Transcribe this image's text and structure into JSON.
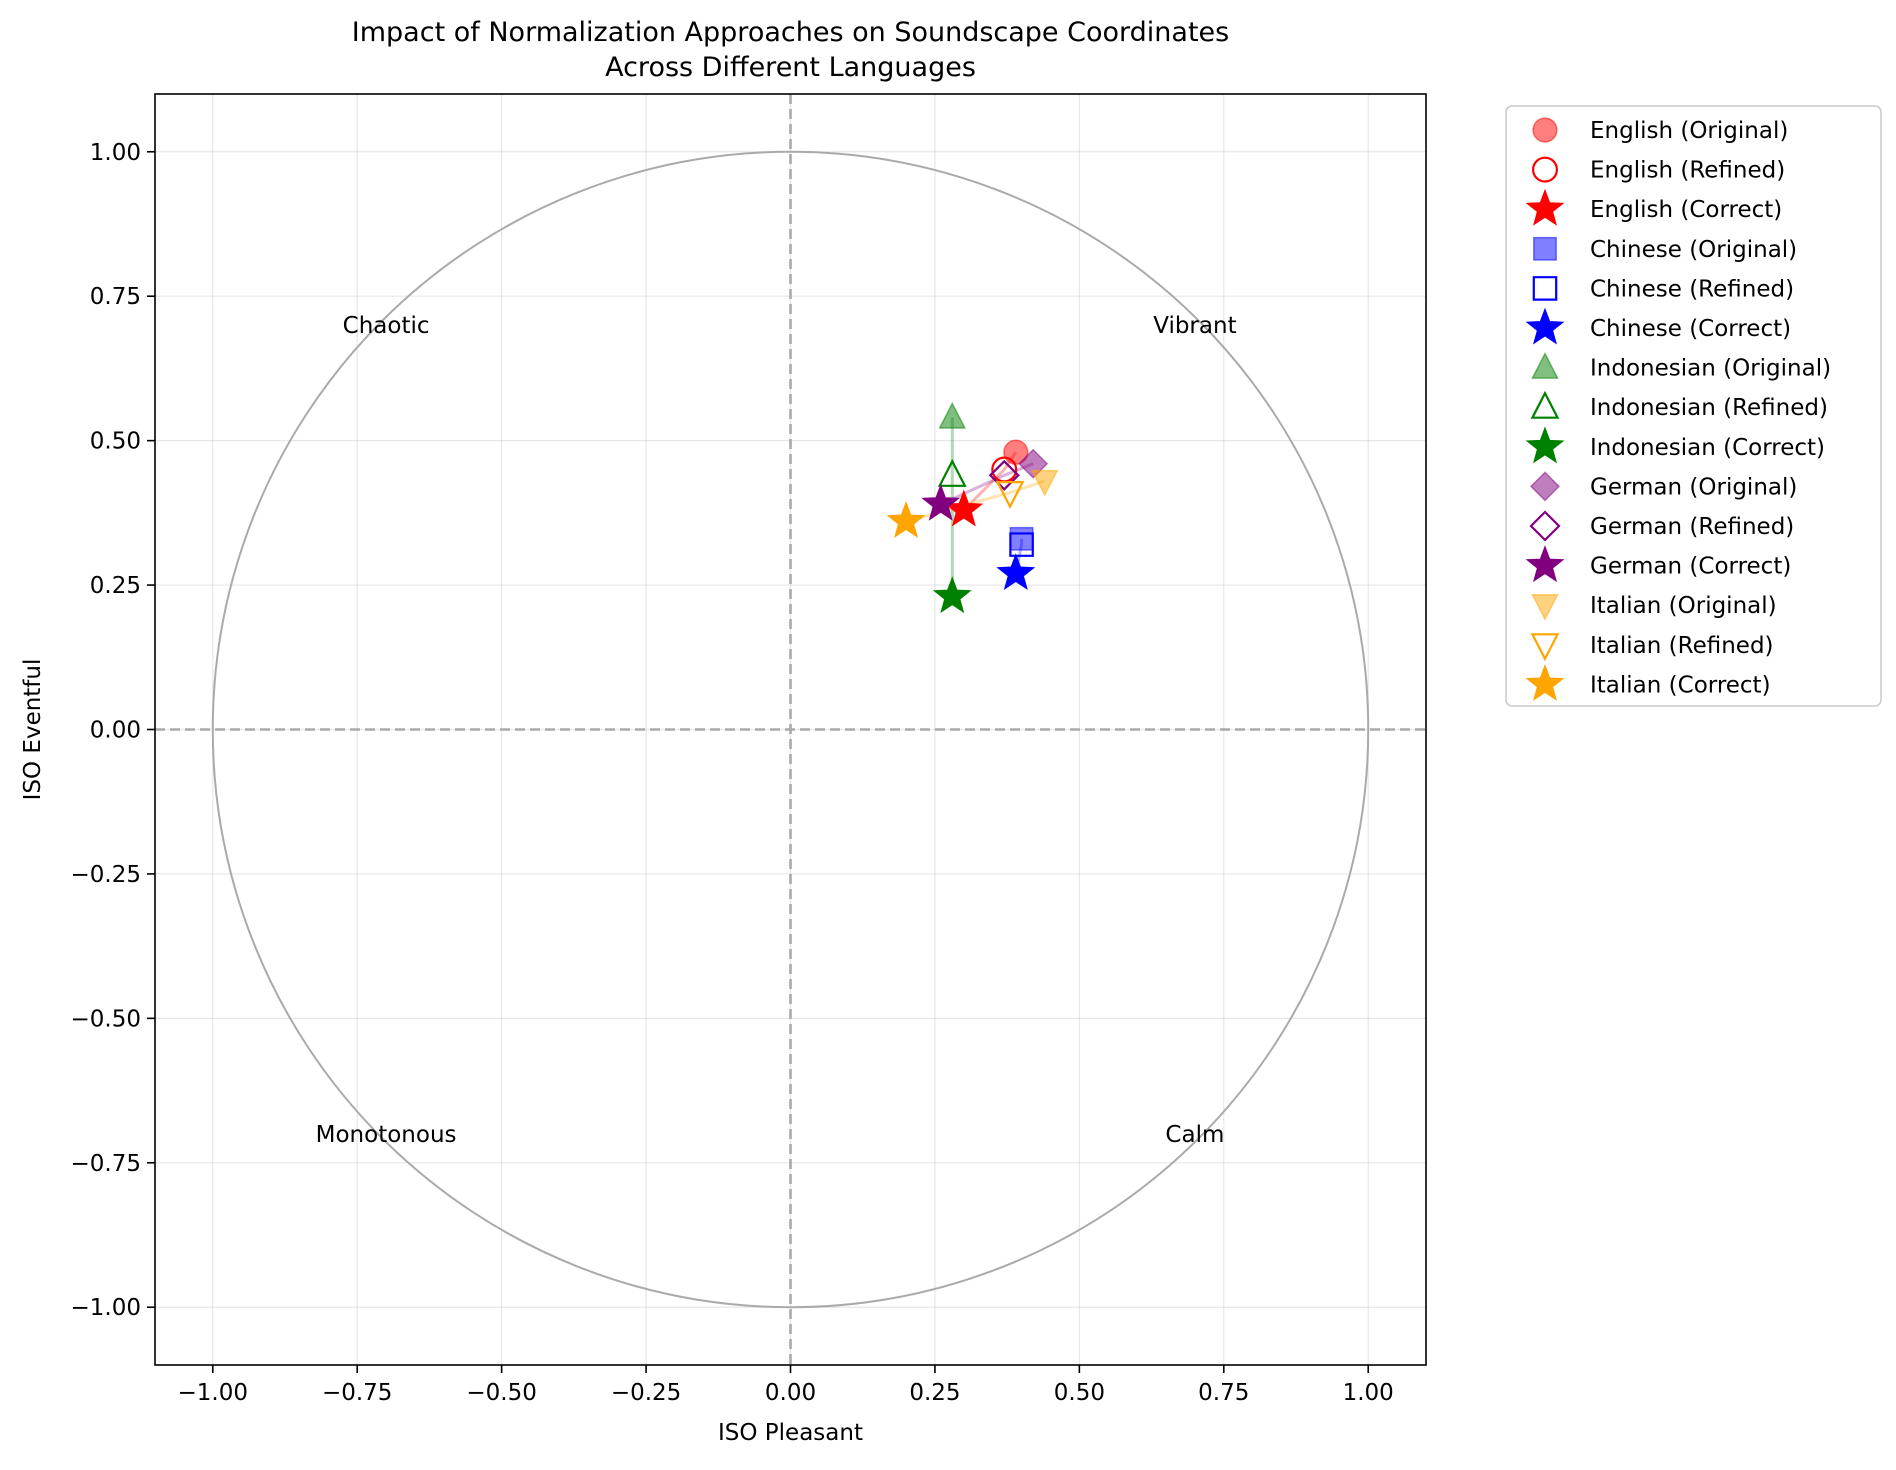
{
  "chart_data": {
    "type": "scatter",
    "title_lines": [
      "Impact of Normalization Approaches on Soundscape Coordinates",
      "Across Different Languages"
    ],
    "xlabel": "ISO Pleasant",
    "ylabel": "ISO Eventful",
    "xlim": [
      -1.1,
      1.1
    ],
    "ylim": [
      -1.1,
      1.1
    ],
    "xticks": [
      -1.0,
      -0.75,
      -0.5,
      -0.25,
      0.0,
      0.25,
      0.5,
      0.75,
      1.0
    ],
    "yticks": [
      -1.0,
      -0.75,
      -0.5,
      -0.25,
      0.0,
      0.25,
      0.5,
      0.75,
      1.0
    ],
    "xtick_labels": [
      "−1.00",
      "−0.75",
      "−0.50",
      "−0.25",
      "0.00",
      "0.25",
      "0.50",
      "0.75",
      "1.00"
    ],
    "ytick_labels": [
      "−1.00",
      "−0.75",
      "−0.50",
      "−0.25",
      "0.00",
      "0.25",
      "0.50",
      "0.75",
      "1.00"
    ],
    "grid": true,
    "unit_circle": true,
    "reference_lines": {
      "x": 0,
      "y": 0,
      "style": "dashed",
      "color": "#aaaaaa"
    },
    "legend_placement": "outside-top-right",
    "quadrant_labels": [
      {
        "text": "Chaotic",
        "x": -0.7,
        "y": 0.7
      },
      {
        "text": "Vibrant",
        "x": 0.7,
        "y": 0.7
      },
      {
        "text": "Monotonous",
        "x": -0.7,
        "y": -0.7
      },
      {
        "text": "Calm",
        "x": 0.7,
        "y": -0.7
      }
    ],
    "languages": [
      {
        "name": "English",
        "color": "#ff0000",
        "marker": "circle",
        "original": [
          0.39,
          0.48
        ],
        "refined": [
          0.37,
          0.45
        ],
        "correct": [
          0.3,
          0.38
        ]
      },
      {
        "name": "Chinese",
        "color": "#0000ff",
        "marker": "square",
        "original": [
          0.4,
          0.33
        ],
        "refined": [
          0.4,
          0.32
        ],
        "correct": [
          0.39,
          0.27
        ]
      },
      {
        "name": "Indonesian",
        "color": "#008000",
        "marker": "triangle-up",
        "original": [
          0.28,
          0.54
        ],
        "refined": [
          0.28,
          0.44
        ],
        "correct": [
          0.28,
          0.23
        ]
      },
      {
        "name": "German",
        "color": "#800080",
        "marker": "diamond",
        "original": [
          0.42,
          0.46
        ],
        "refined": [
          0.37,
          0.44
        ],
        "correct": [
          0.26,
          0.39
        ]
      },
      {
        "name": "Italian",
        "color": "#ffa500",
        "marker": "triangle-down",
        "original": [
          0.44,
          0.43
        ],
        "refined": [
          0.38,
          0.41
        ],
        "correct": [
          0.2,
          0.36
        ]
      }
    ],
    "legend": [
      "English (Original)",
      "English (Refined)",
      "English (Correct)",
      "Chinese (Original)",
      "Chinese (Refined)",
      "Chinese (Correct)",
      "Indonesian (Original)",
      "Indonesian (Refined)",
      "Indonesian (Correct)",
      "German (Original)",
      "German (Refined)",
      "German (Correct)",
      "Italian (Original)",
      "Italian (Refined)",
      "Italian (Correct)"
    ]
  }
}
